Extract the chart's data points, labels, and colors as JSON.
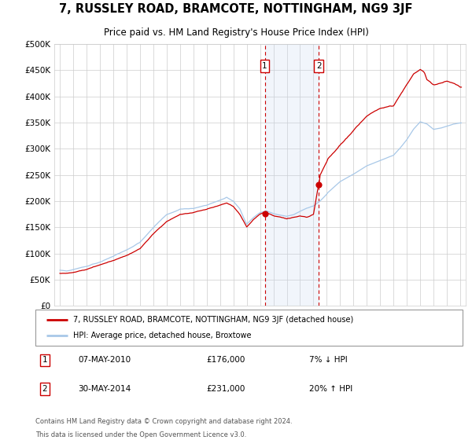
{
  "title": "7, RUSSLEY ROAD, BRAMCOTE, NOTTINGHAM, NG9 3JF",
  "subtitle": "Price paid vs. HM Land Registry's House Price Index (HPI)",
  "legend_line1": "7, RUSSLEY ROAD, BRAMCOTE, NOTTINGHAM, NG9 3JF (detached house)",
  "legend_line2": "HPI: Average price, detached house, Broxtowe",
  "annotation1_date": "07-MAY-2010",
  "annotation1_price": "£176,000",
  "annotation1_hpi": "7% ↓ HPI",
  "annotation2_date": "30-MAY-2014",
  "annotation2_price": "£231,000",
  "annotation2_hpi": "20% ↑ HPI",
  "footnote1": "Contains HM Land Registry data © Crown copyright and database right 2024.",
  "footnote2": "This data is licensed under the Open Government Licence v3.0.",
  "sale1_year": 2010.35,
  "sale1_price": 176000,
  "sale2_year": 2014.41,
  "sale2_price": 231000,
  "hpi_color": "#a8c8e8",
  "property_color": "#cc0000",
  "shade_color": "#ddeeff",
  "vline_color": "#cc0000",
  "ylim": [
    0,
    500000
  ],
  "yticks": [
    0,
    50000,
    100000,
    150000,
    200000,
    250000,
    300000,
    350000,
    400000,
    450000,
    500000
  ],
  "background_color": "#ffffff",
  "grid_color": "#cccccc"
}
